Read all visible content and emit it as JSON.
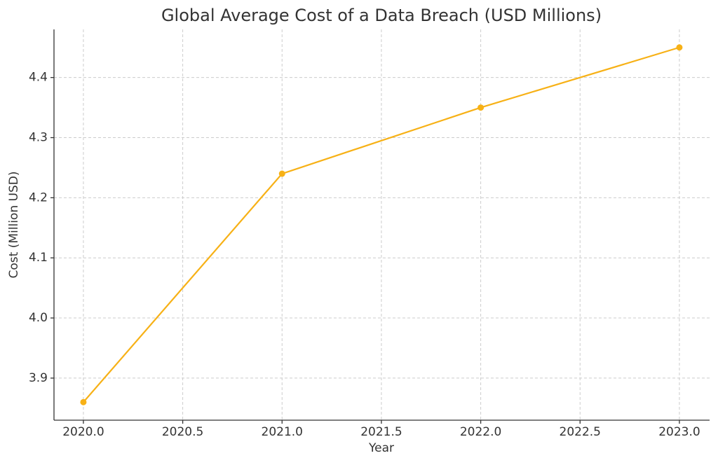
{
  "chart_data": {
    "type": "line",
    "title": "Global Average Cost of a Data Breach (USD Millions)",
    "x_label": "Year",
    "y_label": "Cost (Million USD)",
    "x": [
      2020,
      2021,
      2022,
      2023
    ],
    "series": [
      {
        "name": "Cost",
        "color": "#f7b116",
        "values": [
          3.86,
          4.24,
          4.35,
          4.45
        ]
      }
    ],
    "xlim": [
      2019.852,
      2023.152
    ],
    "ylim": [
      3.83,
      4.48
    ],
    "xticks": [
      {
        "value": 2020,
        "label": "2020.0"
      },
      {
        "value": 2020.5,
        "label": "2020.5"
      },
      {
        "value": 2021,
        "label": "2021.0"
      },
      {
        "value": 2021.5,
        "label": "2021.5"
      },
      {
        "value": 2022,
        "label": "2022.0"
      },
      {
        "value": 2022.5,
        "label": "2022.5"
      },
      {
        "value": 2023,
        "label": "2023.0"
      }
    ],
    "yticks": [
      3.9,
      {
        "value": 4,
        "label": "4.0"
      },
      4.1,
      4.2,
      4.3,
      4.4
    ],
    "grid": true
  }
}
